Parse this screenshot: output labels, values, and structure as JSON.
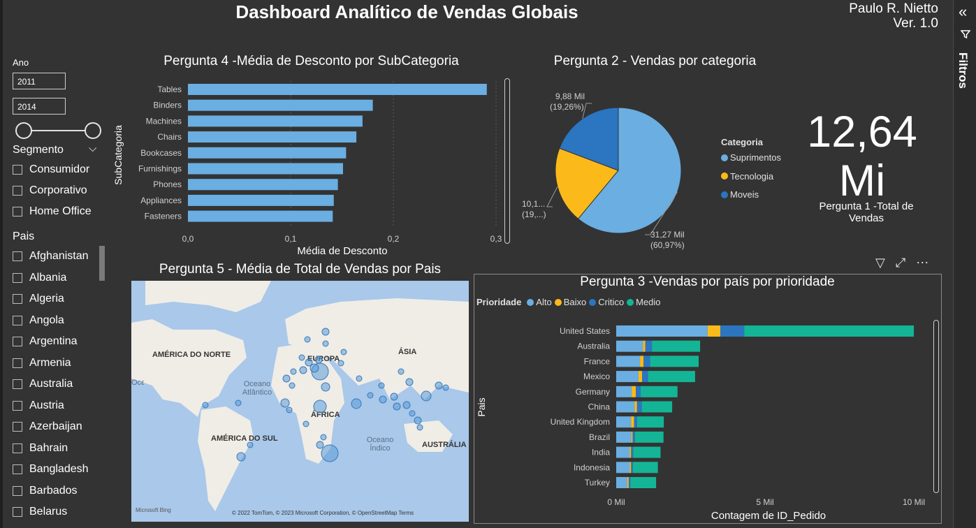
{
  "header": {
    "title": "Dashboard Analítico de Vendas Globais",
    "author": "Paulo R. Nietto",
    "version": "Ver. 1.0"
  },
  "filters_pane": {
    "label": "Filtros",
    "icon": "chevron-double-left-icon"
  },
  "slicers": {
    "ano": {
      "label": "Ano",
      "from": "2011",
      "to": "2014"
    },
    "segmento": {
      "label": "Segmento",
      "items": [
        "Consumidor",
        "Corporativo",
        "Home Office"
      ]
    },
    "pais": {
      "label": "Pais",
      "items": [
        "Afghanistan",
        "Albania",
        "Algeria",
        "Angola",
        "Argentina",
        "Armenia",
        "Australia",
        "Austria",
        "Azerbaijan",
        "Bahrain",
        "Bangladesh",
        "Barbados",
        "Belarus"
      ]
    }
  },
  "kpi": {
    "value": "12,64",
    "unit": "Mi",
    "label": "Pergunta 1 -Total de Vendas"
  },
  "colors": {
    "alto": "#6aaee2",
    "baixo": "#fbba1a",
    "critico": "#2b75c1",
    "medio": "#14b596",
    "bar": "#6aaee2"
  },
  "chart_data": [
    {
      "id": "q4",
      "type": "bar",
      "orientation": "horizontal",
      "title": "Pergunta 4 -Média de Desconto por SubCategoria",
      "xlabel": "Média de Desconto",
      "ylabel": "SubCategoria",
      "categories": [
        "Tables",
        "Binders",
        "Machines",
        "Chairs",
        "Bookcases",
        "Furnishings",
        "Phones",
        "Appliances",
        "Fasteners"
      ],
      "values": [
        0.291,
        0.18,
        0.17,
        0.164,
        0.154,
        0.151,
        0.146,
        0.142,
        0.141
      ],
      "xlim": [
        0,
        0.3
      ],
      "xticks": [
        "0,0",
        "0,1",
        "0,2",
        "0,3"
      ],
      "grid": true
    },
    {
      "id": "q2",
      "type": "pie",
      "title": "Pergunta 2 - Vendas por categoria",
      "legend_title": "Categoria",
      "slices": [
        {
          "name": "Suprimentos",
          "value": 31.27,
          "percent": 60.97,
          "label": "31,27 Mil",
          "label_pct": "(60,97%)",
          "color": "#6aaee2"
        },
        {
          "name": "Tecnologia",
          "value": 10.1,
          "percent": 19.77,
          "label": "10,1...",
          "label_pct": "(19,...)",
          "color": "#fbba1a"
        },
        {
          "name": "Moveis",
          "value": 9.88,
          "percent": 19.26,
          "label": "9,88 Mil",
          "label_pct": "(19,26%)",
          "color": "#2b75c1"
        }
      ]
    },
    {
      "id": "q3",
      "type": "bar",
      "orientation": "horizontal",
      "stacked": true,
      "title": "Pergunta 3 -Vendas por país por prioridade",
      "legend_title": "Prioridade",
      "xlabel": "Contagem de ID_Pedido",
      "ylabel": "Pais",
      "xticks": [
        "0 Mil",
        "5 Mil",
        "10 Mil"
      ],
      "xlim": [
        0,
        10
      ],
      "categories": [
        "United States",
        "Australia",
        "France",
        "Mexico",
        "Germany",
        "China",
        "United Kingdom",
        "Brazil",
        "India",
        "Indonesia",
        "Turkey"
      ],
      "series": [
        {
          "name": "Alto",
          "color": "#6aaee2",
          "values": [
            3.07,
            0.9,
            0.8,
            0.75,
            0.52,
            0.62,
            0.5,
            0.51,
            0.45,
            0.45,
            0.37
          ]
        },
        {
          "name": "Baixo",
          "color": "#fbba1a",
          "values": [
            0.43,
            0.08,
            0.12,
            0.12,
            0.14,
            0.08,
            0.1,
            0.04,
            0.05,
            0.05,
            0.05
          ]
        },
        {
          "name": "Critico",
          "color": "#2b75c1",
          "values": [
            0.8,
            0.22,
            0.22,
            0.2,
            0.16,
            0.16,
            0.1,
            0.08,
            0.07,
            0.06,
            0.06
          ]
        },
        {
          "name": "Medio",
          "color": "#14b596",
          "values": [
            5.7,
            1.62,
            1.63,
            1.58,
            1.24,
            1.02,
            0.9,
            0.96,
            0.92,
            0.84,
            0.86
          ]
        }
      ]
    }
  ],
  "map": {
    "title": "Pergunta 5 - Média de Total de Vendas por Pais",
    "labels": [
      "AMÉRICA DO NORTE",
      "EUROPA",
      "ÁSIA",
      "ÁFRICA",
      "AMÉRICA DO SUL",
      "AUSTRÁLIA"
    ],
    "oceans": [
      "Oceano Atlântico",
      "Oceano Índico",
      "Oceano"
    ],
    "attribution_logo": "Microsoft Bing",
    "copyright": "© 2022 TomTom, © 2023 Microsoft Corporation, © OpenStreetMap  Terms"
  }
}
